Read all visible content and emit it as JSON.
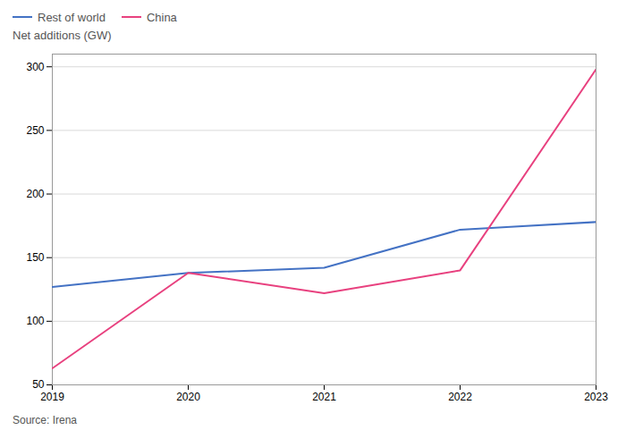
{
  "chart_data": {
    "type": "line",
    "ylabel": "Net additions (GW)",
    "annotations": [
      "Source: Irena"
    ],
    "x": [
      2019,
      2020,
      2021,
      2022,
      2023
    ],
    "series": [
      {
        "name": "Rest of world",
        "color": "#4472c4",
        "values": [
          127,
          138,
          142,
          172,
          178
        ]
      },
      {
        "name": "China",
        "color": "#e8417f",
        "values": [
          63,
          138,
          122,
          140,
          298
        ]
      }
    ],
    "xlim": [
      2019,
      2023
    ],
    "xticks": [
      2019,
      2020,
      2021,
      2022,
      2023
    ],
    "ylim": [
      50,
      310
    ],
    "yticks": [
      50,
      100,
      150,
      200,
      250,
      300
    ],
    "grid": true,
    "legend": "upper left"
  }
}
